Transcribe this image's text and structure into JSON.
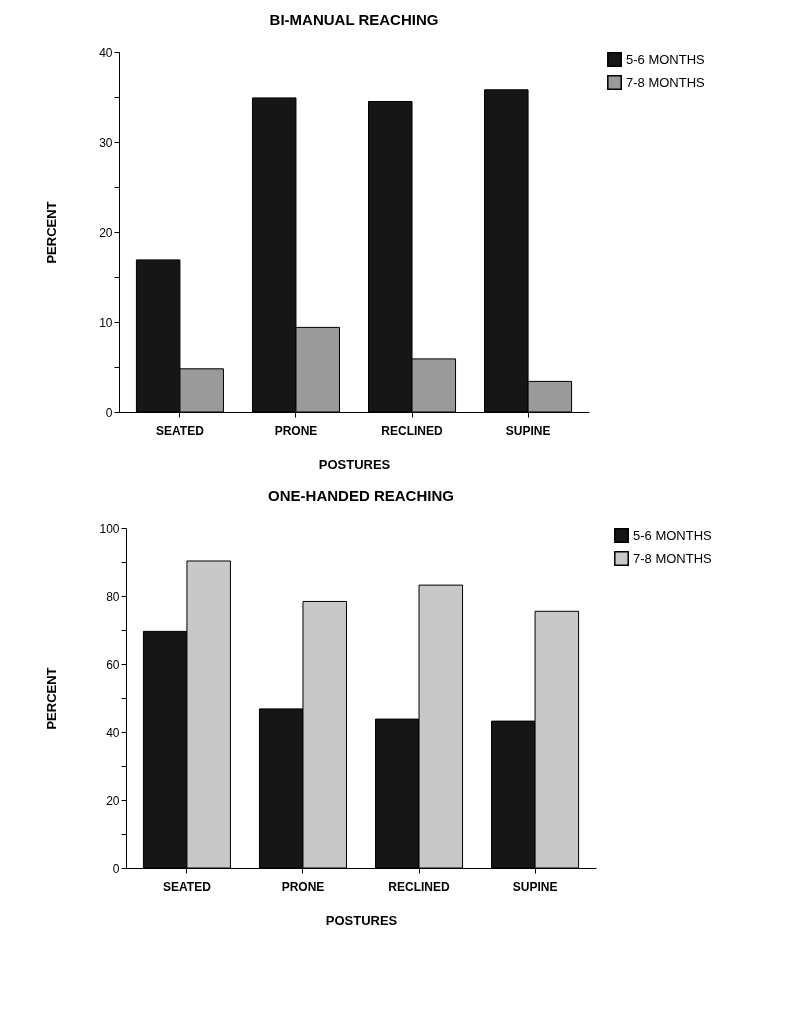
{
  "chart_data": [
    {
      "type": "bar",
      "title": "BI-MANUAL REACHING",
      "xlabel": "POSTURES",
      "ylabel": "PERCENT",
      "categories": [
        "SEATED",
        "PRONE",
        "RECLINED",
        "SUPINE"
      ],
      "series": [
        {
          "name": "5-6 MONTHS",
          "color": "#161616",
          "values": [
            16.9,
            34.9,
            34.5,
            35.8
          ]
        },
        {
          "name": "7-8 MONTHS",
          "color": "#9a9a9a",
          "values": [
            4.8,
            9.4,
            5.9,
            3.4
          ]
        }
      ],
      "ylim": [
        0,
        40
      ],
      "yticks": [
        0,
        {
          "value": 5,
          "label": null
        },
        10,
        {
          "value": 15,
          "label": null
        },
        20,
        {
          "value": 25,
          "label": null
        },
        30,
        {
          "value": 35,
          "label": null
        },
        40
      ],
      "grid": false,
      "legend": "right"
    },
    {
      "type": "bar",
      "title": "ONE-HANDED REACHING",
      "xlabel": "POSTURES",
      "ylabel": "PERCENT",
      "categories": [
        "SEATED",
        "PRONE",
        "RECLINED",
        "SUPINE"
      ],
      "series": [
        {
          "name": "5-6 MONTHS",
          "color": "#161616",
          "values": [
            69.6,
            46.8,
            43.8,
            43.2
          ]
        },
        {
          "name": "7-8 MONTHS",
          "color": "#c8c8c8",
          "values": [
            90.3,
            78.4,
            83.2,
            75.5
          ]
        }
      ],
      "ylim": [
        0,
        100
      ],
      "yticks": [
        0,
        {
          "value": 10,
          "label": null
        },
        20,
        {
          "value": 30,
          "label": null
        },
        40,
        {
          "value": 50,
          "label": null
        },
        60,
        {
          "value": 70,
          "label": null
        },
        80,
        {
          "value": 90,
          "label": null
        },
        100
      ],
      "grid": false,
      "legend": "right"
    }
  ]
}
